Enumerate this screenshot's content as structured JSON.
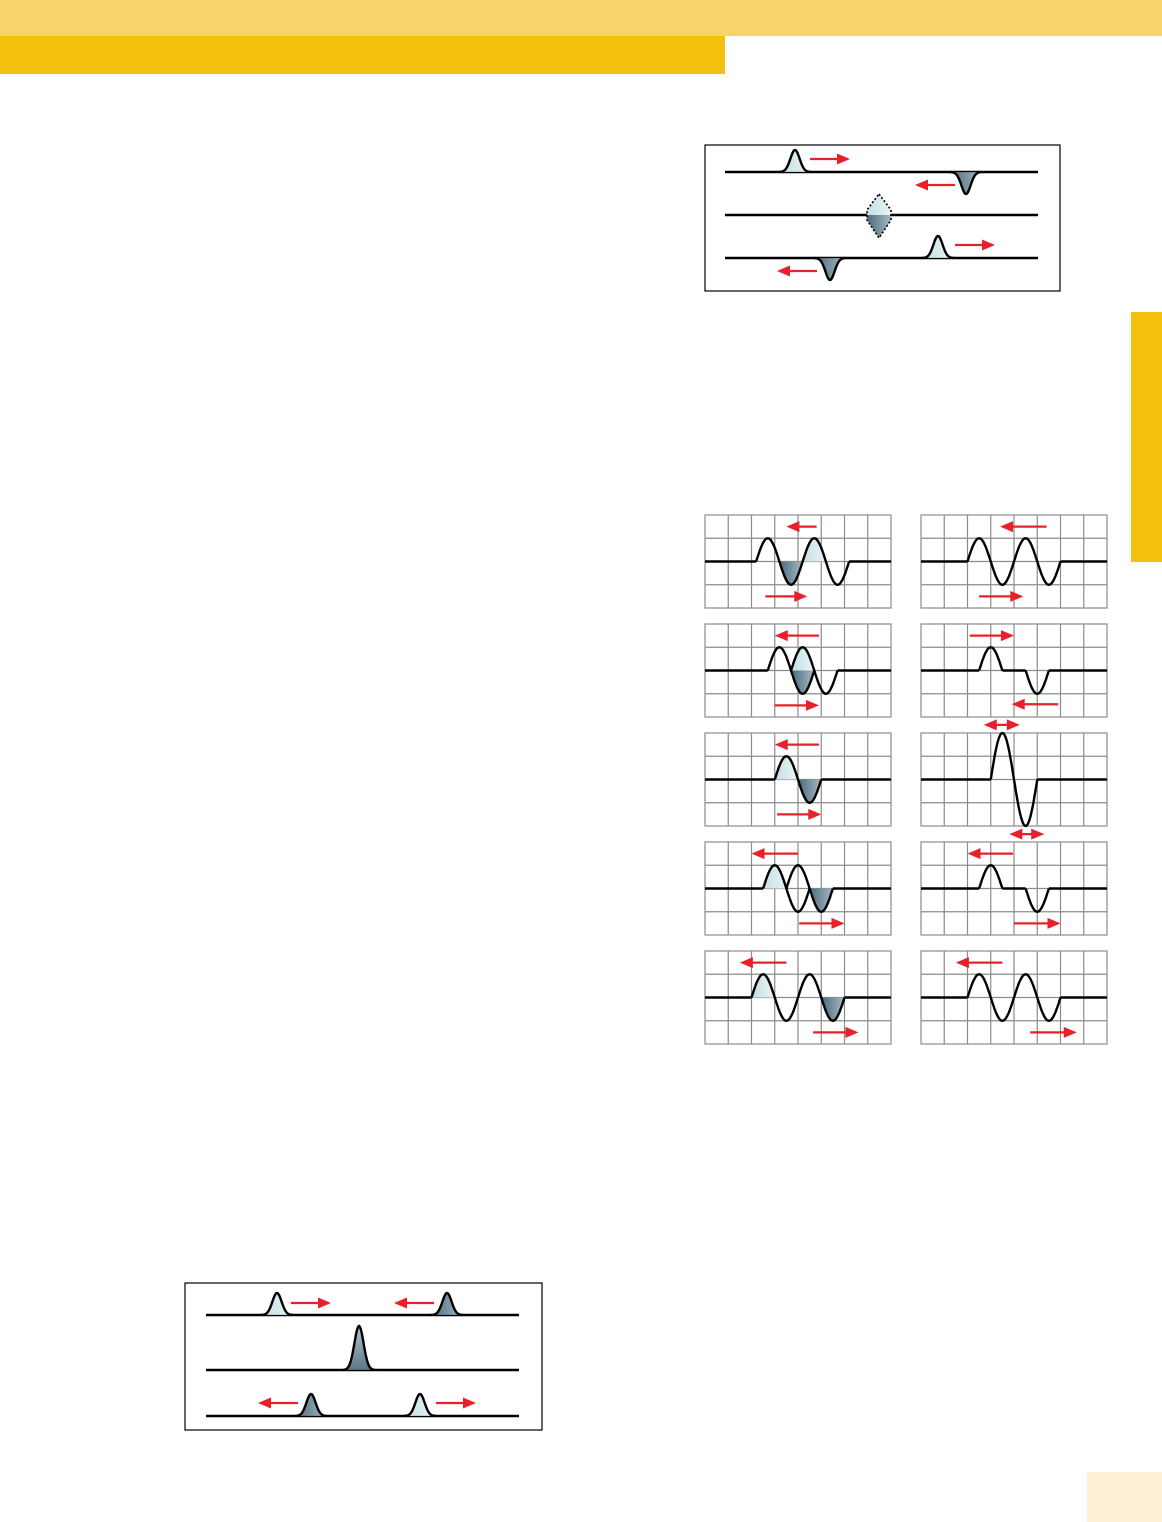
{
  "colors": {
    "header_top": "#f7d36a",
    "header_band": "#f2c00d",
    "side_tab": "#f2c00d",
    "page_corner": "#fdf0d7",
    "arrow": "#e8202a",
    "grid": "#8c8c8c",
    "wave": "#000000",
    "pulse_light_a": "#c3dfe4",
    "pulse_light_b": "#eaf4f5",
    "pulse_dark_a": "#4c6a7b",
    "pulse_dark_b": "#a6bac5"
  },
  "figures": {
    "pulse_crossing_inverted": {
      "rows": 3
    },
    "wave_superposition_grid": {
      "panels": 10,
      "columns": 8,
      "rows": 4
    },
    "pulse_crossing_upright": {
      "rows": 3
    }
  }
}
